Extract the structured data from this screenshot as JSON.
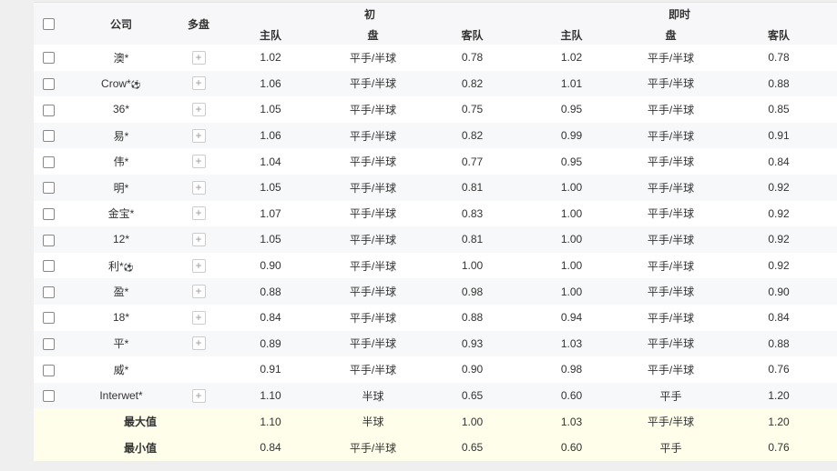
{
  "header": {
    "company": "公司",
    "multi": "多盘",
    "initial": "初",
    "live": "即时",
    "home": "主队",
    "line": "盘",
    "away": "客队"
  },
  "rows": [
    {
      "company": "澳*",
      "ball": false,
      "plus": true,
      "i_home": "1.02",
      "i_line": "平手/半球",
      "i_away": "0.78",
      "l_home": "1.02",
      "l_line": "平手/半球",
      "l_away": "0.78"
    },
    {
      "company": "Crow*",
      "ball": true,
      "plus": true,
      "i_home": "1.06",
      "i_line": "平手/半球",
      "i_away": "0.82",
      "l_home": "1.01",
      "l_line": "平手/半球",
      "l_away": "0.88"
    },
    {
      "company": "36*",
      "ball": false,
      "plus": true,
      "i_home": "1.05",
      "i_line": "平手/半球",
      "i_away": "0.75",
      "l_home": "0.95",
      "l_line": "平手/半球",
      "l_away": "0.85"
    },
    {
      "company": "易*",
      "ball": false,
      "plus": true,
      "i_home": "1.06",
      "i_line": "平手/半球",
      "i_away": "0.82",
      "l_home": "0.99",
      "l_line": "平手/半球",
      "l_away": "0.91"
    },
    {
      "company": "伟*",
      "ball": false,
      "plus": true,
      "i_home": "1.04",
      "i_line": "平手/半球",
      "i_away": "0.77",
      "l_home": "0.95",
      "l_line": "平手/半球",
      "l_away": "0.84"
    },
    {
      "company": "明*",
      "ball": false,
      "plus": true,
      "i_home": "1.05",
      "i_line": "平手/半球",
      "i_away": "0.81",
      "l_home": "1.00",
      "l_line": "平手/半球",
      "l_away": "0.92"
    },
    {
      "company": "金宝*",
      "ball": false,
      "plus": true,
      "i_home": "1.07",
      "i_line": "平手/半球",
      "i_away": "0.83",
      "l_home": "1.00",
      "l_line": "平手/半球",
      "l_away": "0.92"
    },
    {
      "company": "12*",
      "ball": false,
      "plus": true,
      "i_home": "1.05",
      "i_line": "平手/半球",
      "i_away": "0.81",
      "l_home": "1.00",
      "l_line": "平手/半球",
      "l_away": "0.92"
    },
    {
      "company": "利*",
      "ball": true,
      "plus": true,
      "i_home": "0.90",
      "i_line": "平手/半球",
      "i_away": "1.00",
      "l_home": "1.00",
      "l_line": "平手/半球",
      "l_away": "0.92"
    },
    {
      "company": "盈*",
      "ball": false,
      "plus": true,
      "i_home": "0.88",
      "i_line": "平手/半球",
      "i_away": "0.98",
      "l_home": "1.00",
      "l_line": "平手/半球",
      "l_away": "0.90"
    },
    {
      "company": "18*",
      "ball": false,
      "plus": true,
      "i_home": "0.84",
      "i_line": "平手/半球",
      "i_away": "0.88",
      "l_home": "0.94",
      "l_line": "平手/半球",
      "l_away": "0.84"
    },
    {
      "company": "平*",
      "ball": false,
      "plus": true,
      "i_home": "0.89",
      "i_line": "平手/半球",
      "i_away": "0.93",
      "l_home": "1.03",
      "l_line": "平手/半球",
      "l_away": "0.88"
    },
    {
      "company": "威*",
      "ball": false,
      "plus": false,
      "i_home": "0.91",
      "i_line": "平手/半球",
      "i_away": "0.90",
      "l_home": "0.98",
      "l_line": "平手/半球",
      "l_away": "0.76"
    },
    {
      "company": "Interwet*",
      "ball": false,
      "plus": true,
      "i_home": "1.10",
      "i_line": "半球",
      "i_away": "0.65",
      "l_home": "0.60",
      "l_line": "平手",
      "l_away": "1.20"
    }
  ],
  "summary": [
    {
      "label": "最大值",
      "i_home": "1.10",
      "i_line": "半球",
      "i_away": "1.00",
      "l_home": "1.03",
      "l_line": "平手/半球",
      "l_away": "1.20"
    },
    {
      "label": "最小值",
      "i_home": "0.84",
      "i_line": "平手/半球",
      "i_away": "0.65",
      "l_home": "0.60",
      "l_line": "平手",
      "l_away": "0.76"
    }
  ],
  "icons": {
    "plus": "+",
    "ball": "⚽"
  }
}
